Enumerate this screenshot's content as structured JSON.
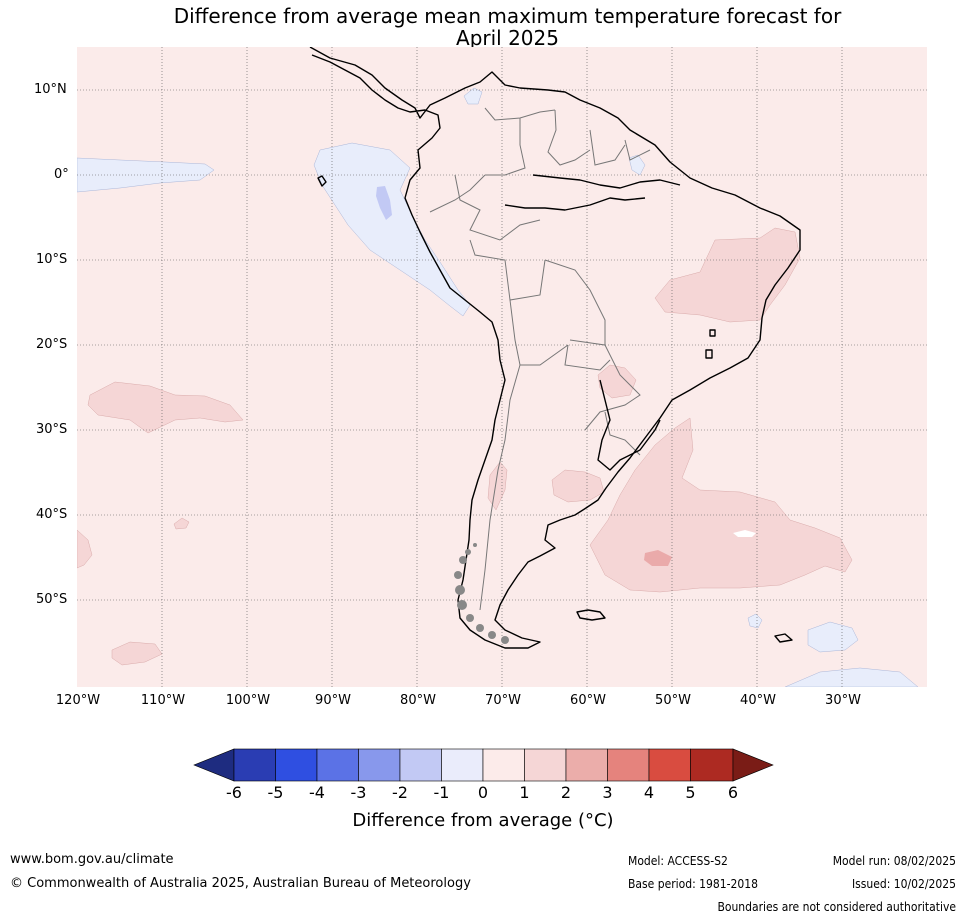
{
  "map": {
    "title_line1": "Difference from average mean maximum temperature forecast for",
    "title_line2": "April 2025",
    "lat_labels": [
      "10°N",
      "0°",
      "10°S",
      "20°S",
      "30°S",
      "40°S",
      "50°S"
    ],
    "lon_labels": [
      "120°W",
      "110°W",
      "100°W",
      "90°W",
      "80°W",
      "70°W",
      "60°W",
      "50°W",
      "40°W",
      "30°W"
    ],
    "region": "South America",
    "dominant_anomaly_range": "0 to 1",
    "colors": {
      "background_anomaly": "#fbebea",
      "cool_anomaly": "#e8edfb",
      "warm_anomaly": "#f5d6d6",
      "strong_warm_anomaly": "#eaaaaa",
      "coast": "#000000",
      "borders": "#777777"
    }
  },
  "legend": {
    "label": "Difference from average (°C)",
    "ticks": [
      "-6",
      "-5",
      "-4",
      "-3",
      "-2",
      "-1",
      "0",
      "1",
      "2",
      "3",
      "4",
      "5",
      "6"
    ],
    "colors": [
      "#1e2c80",
      "#2a3db3",
      "#2f4fe1",
      "#5b72e6",
      "#8898ec",
      "#c2c9f4",
      "#eaecfb",
      "#fcebea",
      "#f5d6d6",
      "#ebadaa",
      "#e5837d",
      "#d94c40",
      "#ad2a22",
      "#7a1c16"
    ]
  },
  "footer": {
    "website": "www.bom.gov.au/climate",
    "copyright": "© Commonwealth of Australia 2025, Australian Bureau of Meteorology",
    "model": "Model: ACCESS-S2",
    "base_period": "Base period: 1981-2018",
    "model_run": "Model run: 08/02/2025",
    "issued": "Issued: 10/02/2025",
    "disclaimer": "Boundaries are not considered authoritative"
  }
}
